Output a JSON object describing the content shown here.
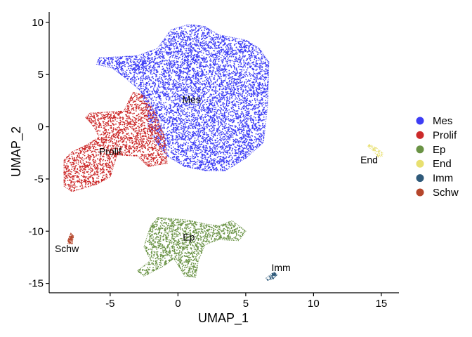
{
  "chart_data": {
    "type": "scatter",
    "title": "",
    "xlabel": "UMAP_1",
    "ylabel": "UMAP_2",
    "xlim": [
      -9.5,
      16.3
    ],
    "ylim": [
      -15.9,
      11.0
    ],
    "xticks": [
      -5,
      0,
      5,
      10,
      15
    ],
    "yticks": [
      10,
      5,
      0,
      -5,
      -10,
      -15
    ],
    "xtick_labels": [
      "-5",
      "0",
      "5",
      "10",
      "15"
    ],
    "ytick_labels": [
      "10",
      "5",
      "0",
      "-5",
      "-10",
      "-15"
    ],
    "grid": false,
    "legend_position": "right",
    "clusters": [
      {
        "name": "Mes",
        "color": "#3d3df5",
        "label_at": [
          1.0,
          2.3
        ],
        "polygon": [
          [
            -5.8,
            6.6
          ],
          [
            -3.0,
            6.8
          ],
          [
            -1.5,
            7.5
          ],
          [
            -0.5,
            9.3
          ],
          [
            0.8,
            9.8
          ],
          [
            2.0,
            9.6
          ],
          [
            3.0,
            8.8
          ],
          [
            5.0,
            8.3
          ],
          [
            6.0,
            7.5
          ],
          [
            6.7,
            6.2
          ],
          [
            6.6,
            2.0
          ],
          [
            6.3,
            -1.5
          ],
          [
            5.0,
            -3.0
          ],
          [
            3.5,
            -4.2
          ],
          [
            2.0,
            -4.2
          ],
          [
            0.5,
            -3.8
          ],
          [
            -0.8,
            -2.8
          ],
          [
            -1.6,
            -1.5
          ],
          [
            -2.2,
            0.0
          ],
          [
            -2.2,
            1.5
          ],
          [
            -2.8,
            3.5
          ],
          [
            -3.8,
            4.6
          ],
          [
            -4.8,
            5.6
          ],
          [
            -6.0,
            6.0
          ]
        ]
      },
      {
        "name": "Prolif",
        "color": "#cc2a2a",
        "label_at": [
          -5.0,
          -2.7
        ],
        "polygon": [
          [
            -6.5,
            1.3
          ],
          [
            -4.0,
            1.5
          ],
          [
            -3.3,
            3.3
          ],
          [
            -2.5,
            3.0
          ],
          [
            -1.7,
            1.4
          ],
          [
            -1.0,
            -1.0
          ],
          [
            -0.8,
            -3.5
          ],
          [
            -2.2,
            -3.8
          ],
          [
            -3.0,
            -2.8
          ],
          [
            -4.5,
            -2.7
          ],
          [
            -5.0,
            -4.8
          ],
          [
            -6.0,
            -5.5
          ],
          [
            -7.8,
            -6.2
          ],
          [
            -8.4,
            -5.7
          ],
          [
            -8.4,
            -3.2
          ],
          [
            -7.8,
            -2.4
          ],
          [
            -6.8,
            -1.8
          ],
          [
            -5.8,
            -1.0
          ],
          [
            -6.2,
            0.0
          ],
          [
            -6.8,
            0.9
          ]
        ]
      },
      {
        "name": "Ep",
        "color": "#6a9345",
        "label_at": [
          0.8,
          -10.9
        ],
        "polygon": [
          [
            -2.0,
            -9.5
          ],
          [
            -1.5,
            -8.7
          ],
          [
            0.5,
            -8.9
          ],
          [
            2.0,
            -9.3
          ],
          [
            3.0,
            -9.5
          ],
          [
            4.0,
            -9.0
          ],
          [
            5.0,
            -10.0
          ],
          [
            4.5,
            -10.9
          ],
          [
            3.0,
            -10.8
          ],
          [
            2.0,
            -11.3
          ],
          [
            1.5,
            -12.8
          ],
          [
            1.3,
            -14.4
          ],
          [
            0.5,
            -14.3
          ],
          [
            -0.3,
            -12.6
          ],
          [
            -1.0,
            -13.3
          ],
          [
            -2.5,
            -14.3
          ],
          [
            -3.0,
            -13.8
          ],
          [
            -2.0,
            -12.8
          ],
          [
            -2.5,
            -11.5
          ],
          [
            -2.3,
            -10.6
          ]
        ]
      },
      {
        "name": "End",
        "color": "#e8e070",
        "label_at": [
          14.1,
          -3.5
        ],
        "polygon": [
          [
            14.1,
            -1.7
          ],
          [
            14.6,
            -2.0
          ],
          [
            15.1,
            -2.5
          ],
          [
            15.1,
            -2.8
          ],
          [
            14.8,
            -2.9
          ],
          [
            14.4,
            -2.3
          ],
          [
            14.0,
            -1.9
          ]
        ]
      },
      {
        "name": "Imm",
        "color": "#2f5a7a",
        "label_at": [
          7.6,
          -13.8
        ],
        "polygon": [
          [
            6.5,
            -14.5
          ],
          [
            6.9,
            -14.1
          ],
          [
            7.1,
            -13.9
          ],
          [
            7.3,
            -14.2
          ],
          [
            7.0,
            -14.6
          ],
          [
            6.6,
            -14.7
          ]
        ]
      },
      {
        "name": "Schw",
        "color": "#b5462b",
        "label_at": [
          -8.2,
          -12.0
        ],
        "polygon": [
          [
            -7.9,
            -10.2
          ],
          [
            -7.7,
            -10.4
          ],
          [
            -7.8,
            -11.2
          ],
          [
            -8.1,
            -11.2
          ],
          [
            -8.1,
            -10.8
          ]
        ]
      }
    ]
  },
  "legend": {
    "items": [
      {
        "label": "Mes",
        "color": "#3d3df5"
      },
      {
        "label": "Prolif",
        "color": "#cc2a2a"
      },
      {
        "label": "Ep",
        "color": "#6a9345"
      },
      {
        "label": "End",
        "color": "#e8e070"
      },
      {
        "label": "Imm",
        "color": "#2f5a7a"
      },
      {
        "label": "Schw",
        "color": "#b5462b"
      }
    ]
  }
}
